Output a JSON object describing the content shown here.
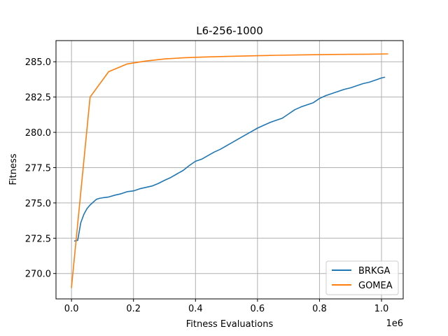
{
  "chart_data": {
    "type": "line",
    "title": "L6-256-1000",
    "xlabel": "Fitness Evaluations",
    "ylabel": "Fitness",
    "x_scale_label": "1e6",
    "xlim": [
      -50000,
      1070000
    ],
    "ylim": [
      268.2,
      286.5
    ],
    "grid": true,
    "legend_position": "lower-right",
    "x_ticks": [
      {
        "value": 0,
        "label": "0.0"
      },
      {
        "value": 200000,
        "label": "0.2"
      },
      {
        "value": 400000,
        "label": "0.4"
      },
      {
        "value": 600000,
        "label": "0.6"
      },
      {
        "value": 800000,
        "label": "0.8"
      },
      {
        "value": 1000000,
        "label": "1.0"
      }
    ],
    "y_ticks": [
      {
        "value": 270.0,
        "label": "270.0"
      },
      {
        "value": 272.5,
        "label": "272.5"
      },
      {
        "value": 275.0,
        "label": "275.0"
      },
      {
        "value": 277.5,
        "label": "277.5"
      },
      {
        "value": 280.0,
        "label": "280.0"
      },
      {
        "value": 282.5,
        "label": "282.5"
      },
      {
        "value": 285.0,
        "label": "285.0"
      }
    ],
    "series": [
      {
        "name": "BRKGA",
        "color": "#1f77b4",
        "x": [
          10000,
          20000,
          30000,
          40000,
          50000,
          60000,
          70000,
          80000,
          90000,
          100000,
          120000,
          140000,
          160000,
          180000,
          200000,
          220000,
          240000,
          260000,
          280000,
          300000,
          320000,
          340000,
          360000,
          380000,
          400000,
          420000,
          440000,
          460000,
          480000,
          500000,
          520000,
          540000,
          560000,
          580000,
          600000,
          620000,
          640000,
          660000,
          680000,
          700000,
          720000,
          740000,
          760000,
          780000,
          800000,
          820000,
          840000,
          860000,
          880000,
          900000,
          920000,
          940000,
          960000,
          980000,
          1000000,
          1010000
        ],
        "y": [
          272.3,
          272.35,
          273.6,
          274.2,
          274.6,
          274.85,
          275.05,
          275.25,
          275.32,
          275.36,
          275.42,
          275.55,
          275.65,
          275.8,
          275.85,
          276.0,
          276.1,
          276.2,
          276.38,
          276.6,
          276.8,
          277.05,
          277.3,
          277.65,
          277.95,
          278.1,
          278.35,
          278.6,
          278.8,
          279.05,
          279.3,
          279.55,
          279.8,
          280.05,
          280.3,
          280.5,
          280.7,
          280.85,
          281.0,
          281.3,
          281.6,
          281.8,
          281.95,
          282.1,
          282.4,
          282.6,
          282.75,
          282.9,
          283.05,
          283.15,
          283.3,
          283.45,
          283.55,
          283.7,
          283.85,
          283.9
        ]
      },
      {
        "name": "GOMEA",
        "color": "#ff7f0e",
        "x": [
          0,
          60000,
          120000,
          180000,
          240000,
          300000,
          360000,
          420000,
          480000,
          540000,
          600000,
          660000,
          720000,
          780000,
          840000,
          900000,
          960000,
          1020000
        ],
        "y": [
          269.0,
          282.5,
          284.3,
          284.85,
          285.05,
          285.2,
          285.28,
          285.33,
          285.37,
          285.4,
          285.43,
          285.46,
          285.48,
          285.5,
          285.52,
          285.53,
          285.54,
          285.56
        ]
      }
    ]
  }
}
